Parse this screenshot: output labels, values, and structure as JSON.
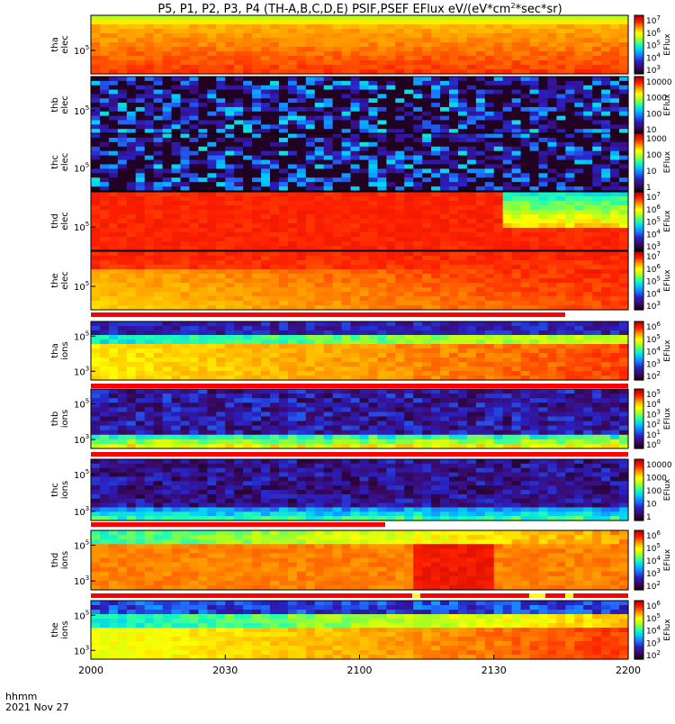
{
  "chart_data": {
    "type": "heatmap",
    "title": "P5, P1, P2, P3, P4 (TH-A,B,C,D,E) PSIF,PSEF EFlux eV/(eV*cm",
    "title_sup": "2",
    "title_end": "*sec*sr)",
    "xlabel_time": "hhmm",
    "xlabel_date": "2021 Nov 27",
    "x_ticks": [
      "2000",
      "2030",
      "2100",
      "2130",
      "2200"
    ],
    "x_range": [
      "2000",
      "2200"
    ],
    "colorbar_unit": "EFlux",
    "panels": [
      {
        "probe": "tha",
        "species": "elec",
        "y_tick": "10",
        "y_sup": "5",
        "pattern": "a_elec",
        "cb_labels": [
          {
            "b": "10",
            "e": "7"
          },
          {
            "b": "10",
            "e": "6"
          },
          {
            "b": "10",
            "e": "5"
          },
          {
            "b": "10",
            "e": "4"
          },
          {
            "b": "10",
            "e": "3"
          }
        ]
      },
      {
        "probe": "thb",
        "species": "elec",
        "y_tick": "10",
        "y_sup": "5",
        "pattern": "noise_elec",
        "cb_labels": [
          {
            "b": "10000",
            "e": ""
          },
          {
            "b": "1000",
            "e": ""
          },
          {
            "b": "100",
            "e": ""
          },
          {
            "b": "10",
            "e": ""
          }
        ]
      },
      {
        "probe": "thc",
        "species": "elec",
        "y_tick": "10",
        "y_sup": "5",
        "pattern": "noise_elec",
        "cb_labels": [
          {
            "b": "1000",
            "e": ""
          },
          {
            "b": "100",
            "e": ""
          },
          {
            "b": "10",
            "e": ""
          },
          {
            "b": "1",
            "e": ""
          }
        ]
      },
      {
        "probe": "thd",
        "species": "elec",
        "y_tick": "10",
        "y_sup": "5",
        "pattern": "d_elec",
        "cb_labels": [
          {
            "b": "10",
            "e": "7"
          },
          {
            "b": "10",
            "e": "6"
          },
          {
            "b": "10",
            "e": "5"
          },
          {
            "b": "10",
            "e": "4"
          },
          {
            "b": "10",
            "e": "3"
          }
        ]
      },
      {
        "probe": "the",
        "species": "elec",
        "y_tick": "10",
        "y_sup": "5",
        "pattern": "e_elec",
        "cb_labels": [
          {
            "b": "10",
            "e": "7"
          },
          {
            "b": "10",
            "e": "6"
          },
          {
            "b": "10",
            "e": "5"
          },
          {
            "b": "10",
            "e": "4"
          },
          {
            "b": "10",
            "e": "3"
          }
        ]
      },
      {
        "probe": "tha",
        "species": "ions",
        "y_tick": "10",
        "y_sup": "5",
        "y_tick2": "10",
        "y_sup2": "3",
        "pattern": "a_ions",
        "cb_labels": [
          {
            "b": "10",
            "e": "6"
          },
          {
            "b": "10",
            "e": "5"
          },
          {
            "b": "10",
            "e": "4"
          },
          {
            "b": "10",
            "e": "3"
          },
          {
            "b": "10",
            "e": "2"
          }
        ]
      },
      {
        "probe": "thb",
        "species": "ions",
        "y_tick": "10",
        "y_sup": "5",
        "y_tick2": "10",
        "y_sup2": "3",
        "pattern": "b_ions",
        "cb_labels": [
          {
            "b": "10",
            "e": "5"
          },
          {
            "b": "10",
            "e": "4"
          },
          {
            "b": "10",
            "e": "3"
          },
          {
            "b": "10",
            "e": "2"
          },
          {
            "b": "10",
            "e": "1"
          },
          {
            "b": "10",
            "e": "0"
          }
        ]
      },
      {
        "probe": "thc",
        "species": "ions",
        "y_tick": "10",
        "y_sup": "5",
        "y_tick2": "10",
        "y_sup2": "3",
        "pattern": "c_ions",
        "cb_labels": [
          {
            "b": "10000",
            "e": ""
          },
          {
            "b": "1000",
            "e": ""
          },
          {
            "b": "100",
            "e": ""
          },
          {
            "b": "10",
            "e": ""
          },
          {
            "b": "1",
            "e": ""
          }
        ]
      },
      {
        "probe": "thd",
        "species": "ions",
        "y_tick": "10",
        "y_sup": "5",
        "y_tick2": "10",
        "y_sup2": "3",
        "pattern": "d_ions",
        "cb_labels": [
          {
            "b": "10",
            "e": "6"
          },
          {
            "b": "10",
            "e": "5"
          },
          {
            "b": "10",
            "e": "4"
          },
          {
            "b": "10",
            "e": "3"
          },
          {
            "b": "10",
            "e": "2"
          }
        ]
      },
      {
        "probe": "the",
        "species": "ions",
        "y_tick": "10",
        "y_sup": "5",
        "y_tick2": "10",
        "y_sup2": "3",
        "pattern": "e_ions",
        "cb_labels": [
          {
            "b": "10",
            "e": "6"
          },
          {
            "b": "10",
            "e": "5"
          },
          {
            "b": "10",
            "e": "4"
          },
          {
            "b": "10",
            "e": "3"
          },
          {
            "b": "10",
            "e": "2"
          }
        ]
      }
    ],
    "colormap": [
      "#1a0010",
      "#3b0a6e",
      "#2a1fbf",
      "#1f6fff",
      "#00c8ff",
      "#20ffb0",
      "#a8ff20",
      "#ffff00",
      "#ff9a00",
      "#ff2000",
      "#b80000"
    ]
  }
}
